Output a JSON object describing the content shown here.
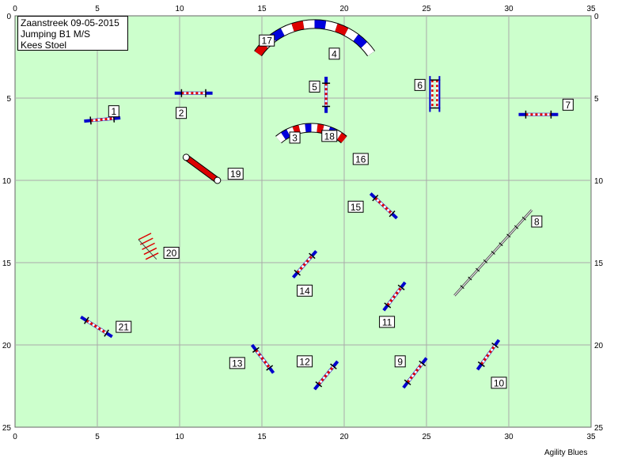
{
  "header": {
    "line1": "Zaanstreek 09-05-2015",
    "line2": "Jumping B1 M/S",
    "line3": "Kees Stoel"
  },
  "footer": {
    "brand": "Agility Blues"
  },
  "field": {
    "x_ticks": [
      "0",
      "5",
      "10",
      "15",
      "20",
      "25",
      "30",
      "35"
    ],
    "y_ticks": [
      "0",
      "5",
      "10",
      "15",
      "20",
      "25"
    ],
    "background": "#ccffcc",
    "grid_color": "#aaaaaa"
  },
  "obstacles": [
    {
      "type": "hurdle",
      "x1": 4.2,
      "y1": 6.4,
      "x2": 6.4,
      "y2": 6.2,
      "label": "1",
      "lx": 6.0,
      "ly": 5.8
    },
    {
      "type": "hurdle",
      "x1": 9.7,
      "y1": 4.7,
      "x2": 12.0,
      "y2": 4.7,
      "label": "2",
      "lx": 10.1,
      "ly": 5.9
    },
    {
      "type": "tunnel",
      "cx": 18.0,
      "cy": 9.9,
      "r": 3.1,
      "a1": -50,
      "a2": -130,
      "label": "3",
      "lx": 17.0,
      "ly": 7.4
    },
    {
      "type": "tunnel",
      "cx": 18.2,
      "cy": 4.7,
      "r": 4.2,
      "a1": -145,
      "a2": -35,
      "label": "4",
      "lx": 19.4,
      "ly": 2.3
    },
    {
      "type": "hurdle",
      "x1": 18.9,
      "y1": 3.7,
      "x2": 18.9,
      "y2": 5.9,
      "label": "5",
      "lx": 18.2,
      "ly": 4.3
    },
    {
      "type": "double",
      "x1": 25.5,
      "y1": 3.9,
      "x2": 25.5,
      "y2": 5.6,
      "label": "6",
      "lx": 24.6,
      "ly": 4.2
    },
    {
      "type": "hurdle",
      "x1": 30.6,
      "y1": 6.0,
      "x2": 33.0,
      "y2": 6.0,
      "label": "7",
      "lx": 33.6,
      "ly": 5.4
    },
    {
      "type": "walk",
      "x1": 26.7,
      "y1": 17.0,
      "x2": 31.4,
      "y2": 11.8,
      "label": "8",
      "lx": 31.7,
      "ly": 12.5
    },
    {
      "type": "hurdle",
      "x1": 23.6,
      "y1": 22.6,
      "x2": 25.0,
      "y2": 20.8,
      "label": "9",
      "lx": 23.4,
      "ly": 21.0
    },
    {
      "type": "hurdle",
      "x1": 28.1,
      "y1": 21.5,
      "x2": 29.4,
      "y2": 19.7,
      "label": "10",
      "lx": 29.4,
      "ly": 22.3
    },
    {
      "type": "hurdle",
      "x1": 22.4,
      "y1": 17.9,
      "x2": 23.7,
      "y2": 16.2,
      "label": "11",
      "lx": 22.6,
      "ly": 18.6
    },
    {
      "type": "hurdle",
      "x1": 18.2,
      "y1": 22.7,
      "x2": 19.6,
      "y2": 21.0,
      "label": "12",
      "lx": 17.6,
      "ly": 21.0
    },
    {
      "type": "hurdle",
      "x1": 14.4,
      "y1": 20.0,
      "x2": 15.7,
      "y2": 21.7,
      "label": "13",
      "lx": 13.5,
      "ly": 21.1
    },
    {
      "type": "hurdle",
      "x1": 16.9,
      "y1": 15.9,
      "x2": 18.3,
      "y2": 14.3,
      "label": "14",
      "lx": 17.6,
      "ly": 16.7
    },
    {
      "type": "hurdle",
      "x1": 21.6,
      "y1": 10.8,
      "x2": 23.2,
      "y2": 12.3,
      "label": "15",
      "lx": 20.7,
      "ly": 11.6
    },
    {
      "type": "label",
      "label": "16",
      "lx": 21.0,
      "ly": 8.7
    },
    {
      "type": "label",
      "label": "17",
      "lx": 15.3,
      "ly": 1.5
    },
    {
      "type": "label",
      "label": "18",
      "lx": 19.1,
      "ly": 7.3
    },
    {
      "type": "chute",
      "x1": 10.4,
      "y1": 8.6,
      "x2": 12.3,
      "y2": 10.0,
      "label": "19",
      "lx": 13.4,
      "ly": 9.6
    },
    {
      "type": "weave",
      "x1": 7.5,
      "y1": 13.6,
      "x2": 8.6,
      "y2": 14.8,
      "label": "20",
      "lx": 9.5,
      "ly": 14.4
    },
    {
      "type": "hurdle",
      "x1": 4.0,
      "y1": 18.3,
      "x2": 5.9,
      "y2": 19.5,
      "label": "21",
      "lx": 6.6,
      "ly": 18.9
    }
  ]
}
